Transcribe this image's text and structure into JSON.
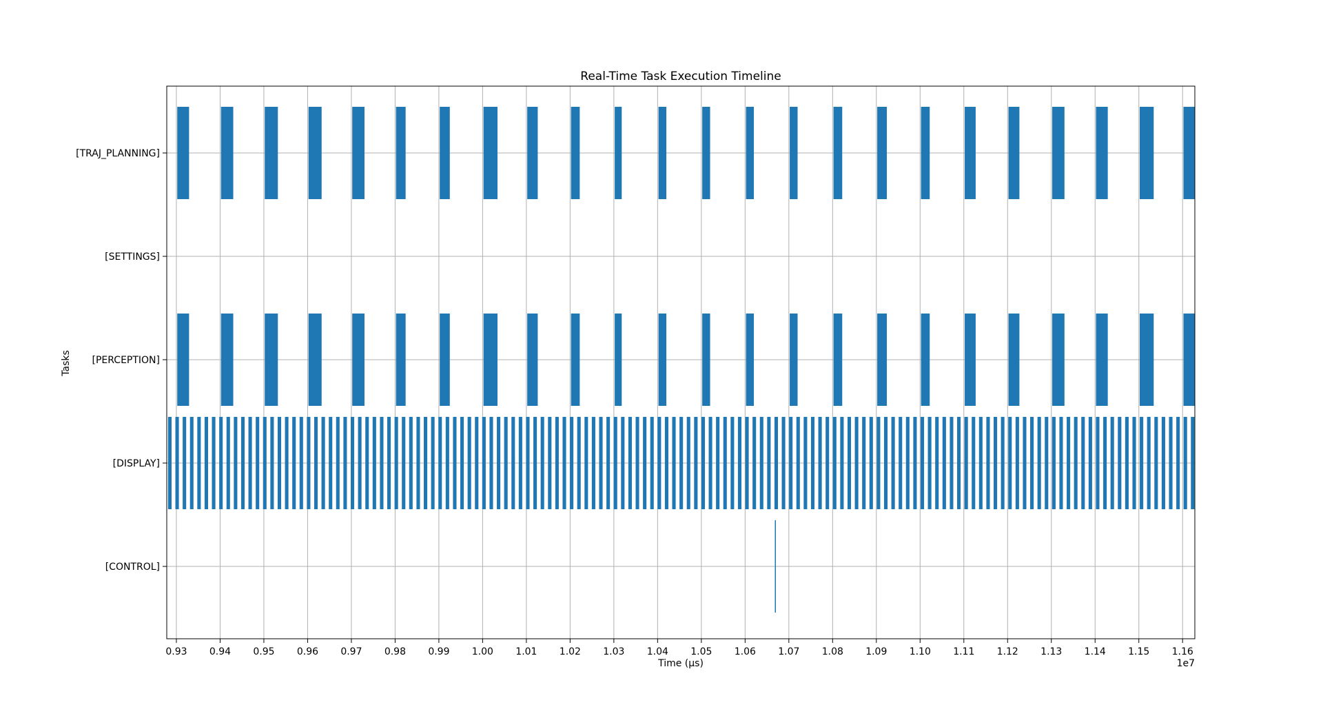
{
  "chart_data": {
    "type": "broken_barh",
    "title": "Real-Time Task Execution Timeline",
    "xlabel": "Time (µs)",
    "ylabel": "Tasks",
    "x_offset_label": "1e7",
    "xlim": [
      0.9278,
      1.1628
    ],
    "x_ticks": [
      0.93,
      0.94,
      0.95,
      0.96,
      0.97,
      0.98,
      0.99,
      1.0,
      1.01,
      1.02,
      1.03,
      1.04,
      1.05,
      1.06,
      1.07,
      1.08,
      1.09,
      1.1,
      1.11,
      1.12,
      1.13,
      1.14,
      1.15,
      1.16
    ],
    "x_tick_labels": [
      "0.93",
      "0.94",
      "0.95",
      "0.96",
      "0.97",
      "0.98",
      "0.99",
      "1.00",
      "1.01",
      "1.02",
      "1.03",
      "1.04",
      "1.05",
      "1.06",
      "1.07",
      "1.08",
      "1.09",
      "1.10",
      "1.11",
      "1.12",
      "1.13",
      "1.14",
      "1.15",
      "1.16"
    ],
    "grid": true,
    "bar_color": "#1f77b4",
    "categories": [
      "[CONTROL]",
      "[DISPLAY]",
      "[PERCEPTION]",
      "[SETTINGS]",
      "[TRAJ_PLANNING]"
    ],
    "series": [
      {
        "task": "[TRAJ_PLANNING]",
        "segments": [
          [
            0.9302,
            0.0027
          ],
          [
            0.9402,
            0.0028
          ],
          [
            0.9502,
            0.003
          ],
          [
            0.9602,
            0.003
          ],
          [
            0.9702,
            0.0028
          ],
          [
            0.9802,
            0.0022
          ],
          [
            0.9902,
            0.0023
          ],
          [
            1.0002,
            0.0032
          ],
          [
            1.0102,
            0.0024
          ],
          [
            1.0202,
            0.002
          ],
          [
            1.0302,
            0.0016
          ],
          [
            1.0402,
            0.0018
          ],
          [
            1.0502,
            0.0018
          ],
          [
            1.0602,
            0.0018
          ],
          [
            1.0702,
            0.0018
          ],
          [
            1.0802,
            0.002
          ],
          [
            1.0902,
            0.0022
          ],
          [
            1.1002,
            0.002
          ],
          [
            1.1102,
            0.0025
          ],
          [
            1.1202,
            0.0025
          ],
          [
            1.1302,
            0.0028
          ],
          [
            1.1402,
            0.0027
          ],
          [
            1.1502,
            0.0032
          ],
          [
            1.1602,
            0.003
          ]
        ]
      },
      {
        "task": "[SETTINGS]",
        "segments": []
      },
      {
        "task": "[PERCEPTION]",
        "segments": [
          [
            0.9302,
            0.0027
          ],
          [
            0.9402,
            0.0028
          ],
          [
            0.9502,
            0.003
          ],
          [
            0.9602,
            0.003
          ],
          [
            0.9702,
            0.0028
          ],
          [
            0.9802,
            0.0022
          ],
          [
            0.9902,
            0.0023
          ],
          [
            1.0002,
            0.0032
          ],
          [
            1.0102,
            0.0024
          ],
          [
            1.0202,
            0.002
          ],
          [
            1.0302,
            0.0016
          ],
          [
            1.0402,
            0.0018
          ],
          [
            1.0502,
            0.0018
          ],
          [
            1.0602,
            0.0018
          ],
          [
            1.0702,
            0.0018
          ],
          [
            1.0802,
            0.002
          ],
          [
            1.0902,
            0.0022
          ],
          [
            1.1002,
            0.002
          ],
          [
            1.1102,
            0.0025
          ],
          [
            1.1202,
            0.0025
          ],
          [
            1.1302,
            0.0028
          ],
          [
            1.1402,
            0.0027
          ],
          [
            1.1502,
            0.0032
          ],
          [
            1.1602,
            0.003
          ]
        ]
      },
      {
        "task": "[DISPLAY]",
        "period": 0.00167,
        "start": 0.9281,
        "end": 1.1627,
        "duration": 0.0008
      },
      {
        "task": "[CONTROL]",
        "segments": [
          [
            1.0668,
            0.00015
          ]
        ]
      }
    ]
  }
}
